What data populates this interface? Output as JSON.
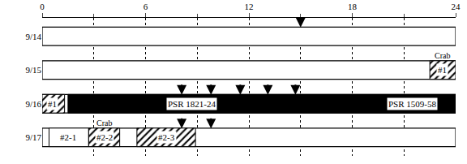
{
  "chart_data": {
    "type": "timeline",
    "rows": [
      "9/14",
      "9/15",
      "9/16",
      "9/17"
    ],
    "xlim": [
      0,
      24
    ],
    "xticks": [
      0,
      6,
      12,
      18,
      24
    ],
    "minor_xticks": [
      3,
      9,
      15,
      21
    ],
    "grid": true,
    "segments": [
      {
        "row": "9/15",
        "start": 22.5,
        "end": 24,
        "color": "#000000",
        "marker": "hatch"
      },
      {
        "row": "9/16",
        "start": 0,
        "end": 1.3,
        "color": "#000000",
        "marker": "hatch"
      },
      {
        "row": "9/16",
        "start": 1.5,
        "end": 24,
        "color": "#000000",
        "marker": "solid"
      },
      {
        "row": "9/17",
        "start": 0.4,
        "end": 2.7,
        "color": "#ffffff",
        "marker": "solid"
      },
      {
        "row": "9/17",
        "start": 2.7,
        "end": 4.5,
        "color": "#000000",
        "marker": "hatch"
      },
      {
        "row": "9/17",
        "start": 5.5,
        "end": 8.9,
        "color": "#000000",
        "marker": "hatch"
      }
    ],
    "labels": [
      {
        "row": "9/15",
        "x": 23.2,
        "text": "Crab",
        "position": "above"
      },
      {
        "row": "9/15",
        "x": 23.2,
        "text": "#1",
        "position": "inside"
      },
      {
        "row": "9/16",
        "x": 0.6,
        "text": "#1",
        "position": "inside"
      },
      {
        "row": "9/16",
        "x": 8.7,
        "text": "PSR 1821-24",
        "position": "inside"
      },
      {
        "row": "9/16",
        "x": 21.5,
        "text": "PSR 1509-58",
        "position": "inside"
      },
      {
        "row": "9/17",
        "x": 1.5,
        "text": "#2-1",
        "position": "inside"
      },
      {
        "row": "9/17",
        "x": 3.6,
        "text": "Crab",
        "position": "above"
      },
      {
        "row": "9/17",
        "x": 3.6,
        "text": "#2-2",
        "position": "inside"
      },
      {
        "row": "9/17",
        "x": 7.2,
        "text": "#2-3",
        "position": "inside"
      }
    ],
    "arrows": [
      {
        "row": "9/14",
        "x": 15.0
      },
      {
        "row": "9/16",
        "x": 8.1
      },
      {
        "row": "9/16",
        "x": 9.8
      },
      {
        "row": "9/16",
        "x": 11.5
      },
      {
        "row": "9/16",
        "x": 13.1
      },
      {
        "row": "9/16",
        "x": 14.7
      },
      {
        "row": "9/17",
        "x": 8.1
      },
      {
        "row": "9/17",
        "x": 9.8
      }
    ]
  }
}
